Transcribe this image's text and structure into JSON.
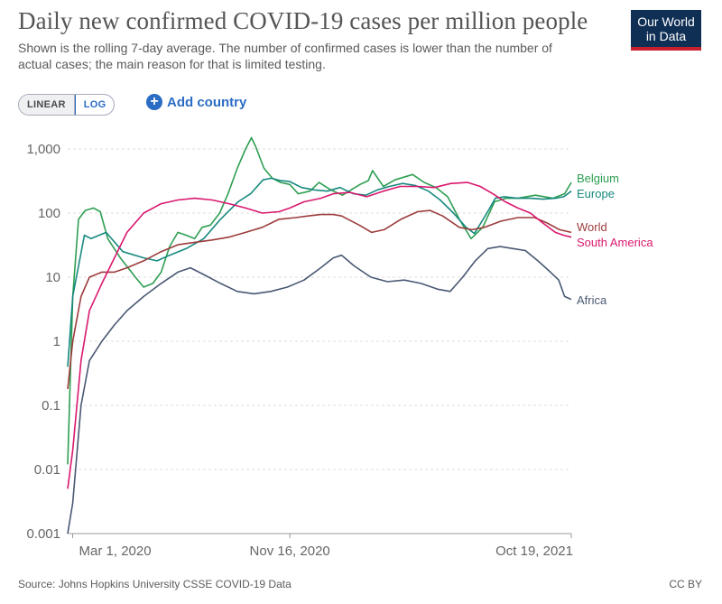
{
  "header": {
    "title": "Daily new confirmed COVID-19 cases per million people",
    "subtitle": "Shown is the rolling 7-day average. The number of confirmed cases is lower than the number of actual cases; the main reason for that is limited testing.",
    "logo_line1": "Our World",
    "logo_line2": "in Data"
  },
  "controls": {
    "linear_label": "LINEAR",
    "log_label": "LOG",
    "add_country_label": "Add country"
  },
  "footer": {
    "source": "Source: Johns Hopkins University CSSE COVID-19 Data",
    "license": "CC BY"
  },
  "colors": {
    "Belgium": "#2e9e52",
    "Europe": "#17897f",
    "World": "#9c3b3b",
    "South America": "#d9186e",
    "Africa": "#4a5874"
  },
  "chart_data": {
    "type": "line",
    "title": "Daily new confirmed COVID-19 cases per million people",
    "yscale": "log",
    "ylim": [
      0.001,
      1000
    ],
    "yticks": [
      0.001,
      0.01,
      0.1,
      1,
      10,
      100,
      1000
    ],
    "ytick_labels": [
      "0.001",
      "0.01",
      "0.1",
      "1",
      "10",
      "100",
      "1,000"
    ],
    "xlim": [
      "2020-02-24",
      "2021-10-19"
    ],
    "xticks": [
      "2020-03-01",
      "2020-11-16",
      "2021-10-19"
    ],
    "xtick_labels": [
      "Mar 1, 2020",
      "Nov 16, 2020",
      "Oct 19, 2021"
    ],
    "grid": true,
    "series": [
      {
        "name": "Belgium",
        "points": [
          [
            "2020-02-24",
            0.012
          ],
          [
            "2020-03-01",
            5
          ],
          [
            "2020-03-08",
            80
          ],
          [
            "2020-03-16",
            110
          ],
          [
            "2020-03-26",
            120
          ],
          [
            "2020-04-03",
            105
          ],
          [
            "2020-04-12",
            40
          ],
          [
            "2020-04-27",
            20
          ],
          [
            "2020-05-15",
            10
          ],
          [
            "2020-05-25",
            7
          ],
          [
            "2020-06-05",
            8
          ],
          [
            "2020-06-15",
            12
          ],
          [
            "2020-06-25",
            30
          ],
          [
            "2020-07-05",
            50
          ],
          [
            "2020-07-15",
            45
          ],
          [
            "2020-07-25",
            40
          ],
          [
            "2020-08-03",
            60
          ],
          [
            "2020-08-13",
            65
          ],
          [
            "2020-08-24",
            100
          ],
          [
            "2020-09-03",
            200
          ],
          [
            "2020-09-14",
            500
          ],
          [
            "2020-09-24",
            1000
          ],
          [
            "2020-10-01",
            1500
          ],
          [
            "2020-10-06",
            1100
          ],
          [
            "2020-10-16",
            500
          ],
          [
            "2020-10-26",
            350
          ],
          [
            "2020-11-05",
            300
          ],
          [
            "2020-11-16",
            280
          ],
          [
            "2020-11-26",
            200
          ],
          [
            "2020-12-10",
            220
          ],
          [
            "2020-12-21",
            300
          ],
          [
            "2021-01-04",
            230
          ],
          [
            "2021-01-18",
            190
          ],
          [
            "2021-02-08",
            280
          ],
          [
            "2021-02-18",
            320
          ],
          [
            "2021-02-23",
            460
          ],
          [
            "2021-03-08",
            260
          ],
          [
            "2021-03-22",
            330
          ],
          [
            "2021-04-12",
            400
          ],
          [
            "2021-04-26",
            300
          ],
          [
            "2021-05-10",
            250
          ],
          [
            "2021-05-24",
            180
          ],
          [
            "2021-06-07",
            80
          ],
          [
            "2021-06-21",
            40
          ],
          [
            "2021-07-05",
            60
          ],
          [
            "2021-07-19",
            150
          ],
          [
            "2021-08-02",
            170
          ],
          [
            "2021-08-16",
            170
          ],
          [
            "2021-09-06",
            190
          ],
          [
            "2021-09-27",
            170
          ],
          [
            "2021-10-11",
            200
          ],
          [
            "2021-10-19",
            300
          ]
        ]
      },
      {
        "name": "Europe",
        "points": [
          [
            "2020-02-24",
            0.4
          ],
          [
            "2020-03-01",
            5
          ],
          [
            "2020-03-15",
            45
          ],
          [
            "2020-03-23",
            40
          ],
          [
            "2020-04-10",
            50
          ],
          [
            "2020-04-30",
            25
          ],
          [
            "2020-05-25",
            20
          ],
          [
            "2020-06-10",
            18
          ],
          [
            "2020-06-25",
            22
          ],
          [
            "2020-07-15",
            28
          ],
          [
            "2020-08-05",
            40
          ],
          [
            "2020-08-25",
            80
          ],
          [
            "2020-09-15",
            150
          ],
          [
            "2020-09-30",
            200
          ],
          [
            "2020-10-15",
            330
          ],
          [
            "2020-10-25",
            350
          ],
          [
            "2020-11-05",
            320
          ],
          [
            "2020-11-16",
            310
          ],
          [
            "2020-11-30",
            250
          ],
          [
            "2020-12-15",
            230
          ],
          [
            "2020-12-31",
            220
          ],
          [
            "2021-01-15",
            250
          ],
          [
            "2021-01-31",
            200
          ],
          [
            "2021-02-15",
            190
          ],
          [
            "2021-03-01",
            230
          ],
          [
            "2021-03-15",
            260
          ],
          [
            "2021-03-31",
            290
          ],
          [
            "2021-04-15",
            270
          ],
          [
            "2021-05-01",
            220
          ],
          [
            "2021-05-15",
            160
          ],
          [
            "2021-05-31",
            100
          ],
          [
            "2021-06-15",
            60
          ],
          [
            "2021-06-25",
            48
          ],
          [
            "2021-07-10",
            100
          ],
          [
            "2021-07-20",
            170
          ],
          [
            "2021-07-31",
            180
          ],
          [
            "2021-08-15",
            170
          ],
          [
            "2021-08-31",
            170
          ],
          [
            "2021-09-15",
            165
          ],
          [
            "2021-09-30",
            170
          ],
          [
            "2021-10-10",
            180
          ],
          [
            "2021-10-19",
            220
          ]
        ]
      },
      {
        "name": "World",
        "points": [
          [
            "2020-02-24",
            0.18
          ],
          [
            "2020-03-01",
            1
          ],
          [
            "2020-03-11",
            5
          ],
          [
            "2020-03-21",
            10
          ],
          [
            "2020-04-05",
            12
          ],
          [
            "2020-04-20",
            12
          ],
          [
            "2020-05-05",
            14
          ],
          [
            "2020-05-25",
            18
          ],
          [
            "2020-06-15",
            25
          ],
          [
            "2020-07-05",
            32
          ],
          [
            "2020-07-25",
            35
          ],
          [
            "2020-08-15",
            38
          ],
          [
            "2020-09-04",
            42
          ],
          [
            "2020-09-24",
            50
          ],
          [
            "2020-10-14",
            60
          ],
          [
            "2020-11-03",
            80
          ],
          [
            "2020-11-23",
            85
          ],
          [
            "2020-12-08",
            90
          ],
          [
            "2020-12-23",
            95
          ],
          [
            "2021-01-07",
            95
          ],
          [
            "2021-01-17",
            90
          ],
          [
            "2021-02-07",
            65
          ],
          [
            "2021-02-22",
            50
          ],
          [
            "2021-03-09",
            55
          ],
          [
            "2021-03-29",
            80
          ],
          [
            "2021-04-18",
            105
          ],
          [
            "2021-05-03",
            110
          ],
          [
            "2021-05-18",
            90
          ],
          [
            "2021-06-07",
            60
          ],
          [
            "2021-06-22",
            55
          ],
          [
            "2021-07-07",
            60
          ],
          [
            "2021-07-27",
            75
          ],
          [
            "2021-08-16",
            85
          ],
          [
            "2021-09-05",
            85
          ],
          [
            "2021-09-20",
            70
          ],
          [
            "2021-10-05",
            55
          ],
          [
            "2021-10-19",
            50
          ]
        ]
      },
      {
        "name": "South America",
        "points": [
          [
            "2020-02-24",
            0.005
          ],
          [
            "2020-03-01",
            0.02
          ],
          [
            "2020-03-11",
            0.5
          ],
          [
            "2020-03-21",
            3
          ],
          [
            "2020-04-05",
            8
          ],
          [
            "2020-04-20",
            20
          ],
          [
            "2020-05-05",
            50
          ],
          [
            "2020-05-25",
            100
          ],
          [
            "2020-06-15",
            140
          ],
          [
            "2020-07-05",
            160
          ],
          [
            "2020-07-25",
            170
          ],
          [
            "2020-08-15",
            160
          ],
          [
            "2020-09-04",
            140
          ],
          [
            "2020-09-24",
            120
          ],
          [
            "2020-10-14",
            100
          ],
          [
            "2020-11-03",
            105
          ],
          [
            "2020-11-16",
            120
          ],
          [
            "2020-12-03",
            150
          ],
          [
            "2020-12-23",
            170
          ],
          [
            "2021-01-07",
            200
          ],
          [
            "2021-01-27",
            210
          ],
          [
            "2021-02-16",
            180
          ],
          [
            "2021-03-08",
            220
          ],
          [
            "2021-03-28",
            260
          ],
          [
            "2021-04-18",
            260
          ],
          [
            "2021-05-08",
            250
          ],
          [
            "2021-05-28",
            290
          ],
          [
            "2021-06-17",
            300
          ],
          [
            "2021-07-02",
            260
          ],
          [
            "2021-07-17",
            200
          ],
          [
            "2021-08-01",
            150
          ],
          [
            "2021-08-16",
            120
          ],
          [
            "2021-08-31",
            100
          ],
          [
            "2021-09-15",
            70
          ],
          [
            "2021-09-30",
            50
          ],
          [
            "2021-10-10",
            45
          ],
          [
            "2021-10-19",
            42
          ]
        ]
      },
      {
        "name": "Africa",
        "points": [
          [
            "2020-02-24",
            0.001
          ],
          [
            "2020-03-01",
            0.003
          ],
          [
            "2020-03-11",
            0.1
          ],
          [
            "2020-03-21",
            0.5
          ],
          [
            "2020-04-05",
            1
          ],
          [
            "2020-04-20",
            1.8
          ],
          [
            "2020-05-05",
            3
          ],
          [
            "2020-05-25",
            5
          ],
          [
            "2020-06-15",
            8
          ],
          [
            "2020-07-05",
            12
          ],
          [
            "2020-07-20",
            14
          ],
          [
            "2020-08-05",
            11
          ],
          [
            "2020-08-25",
            8
          ],
          [
            "2020-09-14",
            6
          ],
          [
            "2020-10-04",
            5.5
          ],
          [
            "2020-10-24",
            6
          ],
          [
            "2020-11-13",
            7
          ],
          [
            "2020-12-03",
            9
          ],
          [
            "2020-12-23",
            14
          ],
          [
            "2021-01-07",
            20
          ],
          [
            "2021-01-17",
            22
          ],
          [
            "2021-02-01",
            15
          ],
          [
            "2021-02-21",
            10
          ],
          [
            "2021-03-13",
            8.5
          ],
          [
            "2021-04-02",
            9
          ],
          [
            "2021-04-22",
            8
          ],
          [
            "2021-05-12",
            6.5
          ],
          [
            "2021-05-27",
            6
          ],
          [
            "2021-06-11",
            10
          ],
          [
            "2021-06-26",
            18
          ],
          [
            "2021-07-11",
            28
          ],
          [
            "2021-07-26",
            30
          ],
          [
            "2021-08-10",
            28
          ],
          [
            "2021-08-25",
            26
          ],
          [
            "2021-09-09",
            18
          ],
          [
            "2021-09-24",
            12
          ],
          [
            "2021-10-04",
            9
          ],
          [
            "2021-10-11",
            5
          ],
          [
            "2021-10-19",
            4.5
          ]
        ]
      }
    ],
    "labels": [
      {
        "series": "Belgium",
        "text": "Belgium",
        "at": 305
      },
      {
        "series": "Europe",
        "text": "Europe",
        "at": 235
      },
      {
        "series": "World",
        "text": "World",
        "at": 55
      },
      {
        "series": "South America",
        "text": "South America",
        "at": 32
      },
      {
        "series": "Africa",
        "text": "Africa",
        "at": 4.5
      }
    ]
  }
}
